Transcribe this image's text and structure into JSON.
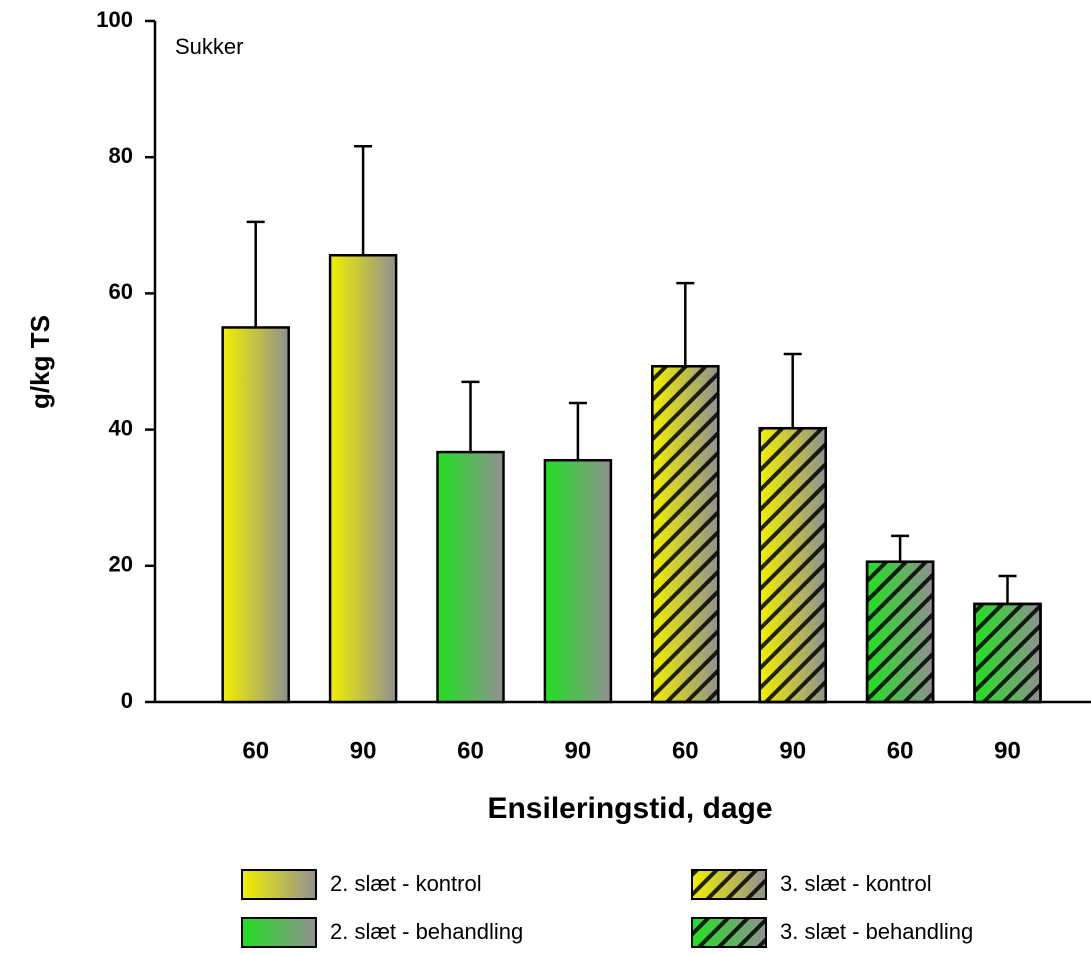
{
  "chart_data": {
    "type": "bar",
    "annotation": "Sukker",
    "y_label": "g/kg TS",
    "x_label": "Ensileringstid, dage",
    "categories": [
      "60",
      "90",
      "60",
      "90",
      "60",
      "90",
      "60",
      "90"
    ],
    "series": [
      {
        "name": "2. slæt - kontrol",
        "color": "#f2f000",
        "hatch": false,
        "values": [
          55,
          65.6,
          null,
          null,
          null,
          null,
          null,
          null
        ],
        "errors": [
          15.5,
          16,
          null,
          null,
          null,
          null,
          null,
          null
        ]
      },
      {
        "name": "2. slæt - behandling",
        "color": "#22e022",
        "hatch": false,
        "values": [
          null,
          null,
          36.7,
          35.5,
          null,
          null,
          null,
          null
        ],
        "errors": [
          null,
          null,
          10.3,
          8.4,
          null,
          null,
          null,
          null
        ]
      },
      {
        "name": "3. slæt - kontrol",
        "color": "#f2f000",
        "hatch": true,
        "values": [
          null,
          null,
          null,
          null,
          49.3,
          40.2,
          null,
          null
        ],
        "errors": [
          null,
          null,
          null,
          null,
          12.2,
          10.9,
          null,
          null
        ]
      },
      {
        "name": "3. slæt - behandling",
        "color": "#22e022",
        "hatch": true,
        "values": [
          null,
          null,
          null,
          null,
          null,
          null,
          20.6,
          14.4
        ],
        "errors": [
          null,
          null,
          null,
          null,
          null,
          null,
          3.8,
          4.1
        ]
      }
    ],
    "gradient_to": "#909090",
    "ylim": [
      0,
      100
    ],
    "yticks": [
      0,
      20,
      40,
      60,
      80,
      100
    ],
    "legend": "bottom"
  }
}
